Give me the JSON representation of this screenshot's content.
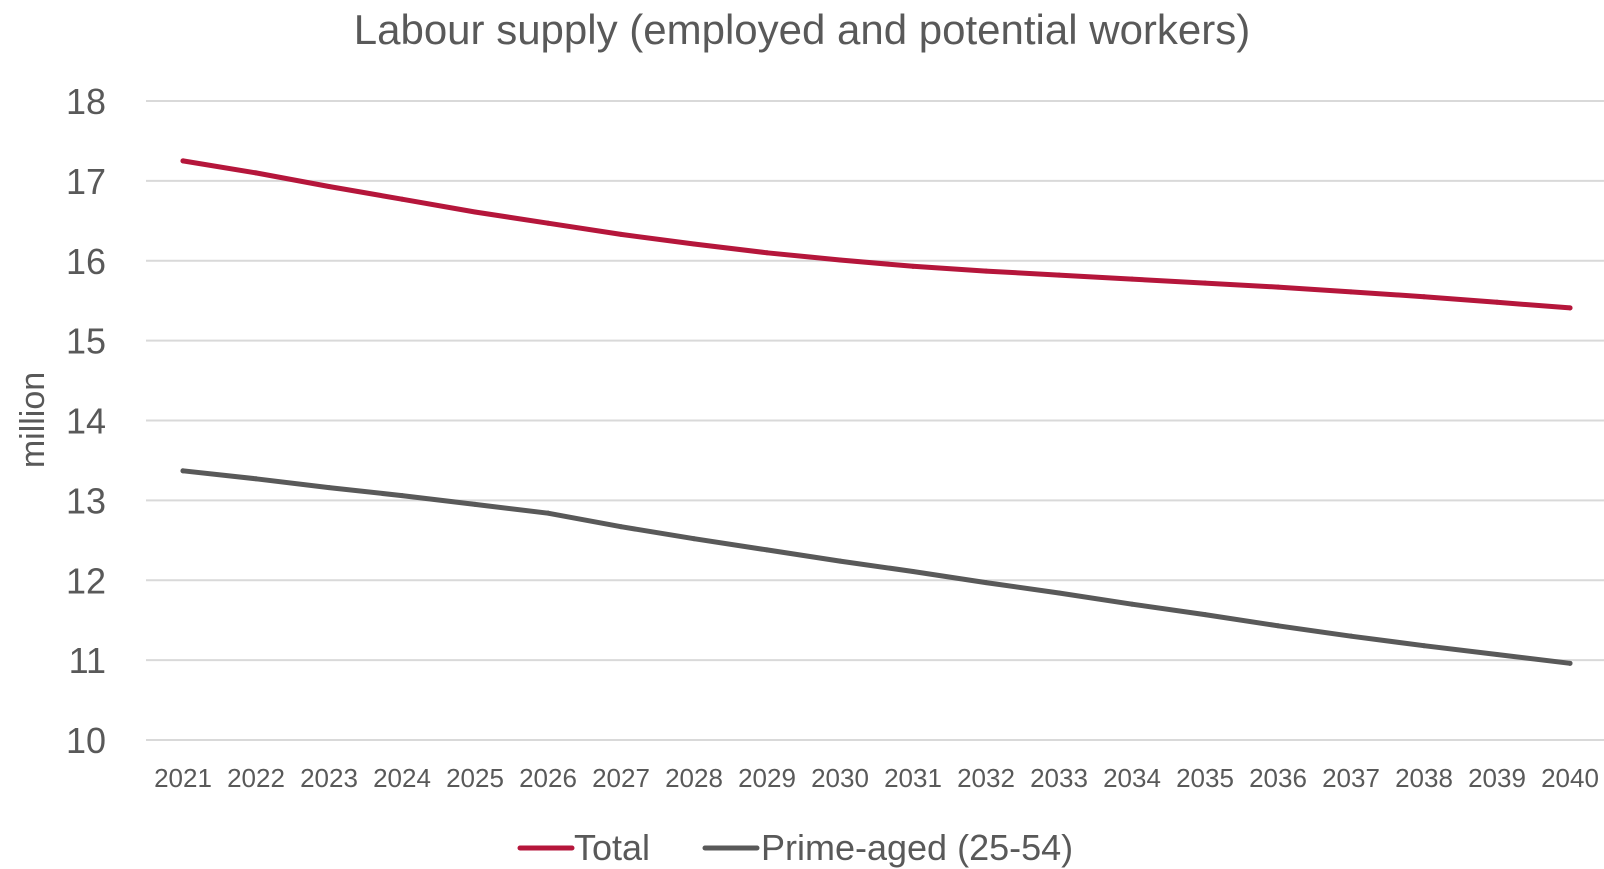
{
  "chart_data": {
    "type": "line",
    "title": "Labour supply (employed and potential workers)",
    "xlabel": "",
    "ylabel": "million",
    "ylim": [
      10,
      18
    ],
    "yticks": [
      "10",
      "11",
      "12",
      "13",
      "14",
      "15",
      "16",
      "17",
      "18"
    ],
    "categories": [
      "2021",
      "2022",
      "2023",
      "2024",
      "2025",
      "2026",
      "2027",
      "2028",
      "2029",
      "2030",
      "2031",
      "2032",
      "2033",
      "2034",
      "2035",
      "2036",
      "2037",
      "2038",
      "2039",
      "2040"
    ],
    "grid": "horizontal",
    "legend": "bottom",
    "series": [
      {
        "name": "Total",
        "color": "#b5163b",
        "values": [
          17.25,
          17.1,
          16.93,
          16.77,
          16.61,
          16.47,
          16.33,
          16.21,
          16.1,
          16.01,
          15.93,
          15.87,
          15.82,
          15.77,
          15.72,
          15.67,
          15.61,
          15.55,
          15.48,
          15.41
        ]
      },
      {
        "name": "Prime-aged (25-54)",
        "color": "#595959",
        "values": [
          13.37,
          13.27,
          13.16,
          13.06,
          12.95,
          12.84,
          12.67,
          12.52,
          12.38,
          12.24,
          12.11,
          11.97,
          11.84,
          11.7,
          11.57,
          11.43,
          11.3,
          11.18,
          11.07,
          10.96
        ]
      }
    ]
  }
}
